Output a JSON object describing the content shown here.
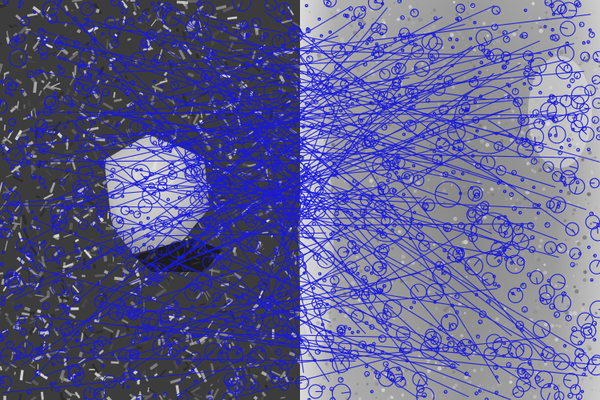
{
  "image": {
    "description_tag": "feature-matching-visualization",
    "panels": [
      "left-photo",
      "right-photo"
    ],
    "marker_color": "#1a1adc",
    "left_tone_colors": [
      "#2a2a2a",
      "#4a4a4a",
      "#6c6c6c",
      "#8e8e8e",
      "#b5b5b5",
      "#d8d8d8"
    ],
    "right_tone_colors": [
      "#7a7a7a",
      "#909090",
      "#a6a6a6",
      "#bcbcbc",
      "#d2d2d2"
    ]
  }
}
